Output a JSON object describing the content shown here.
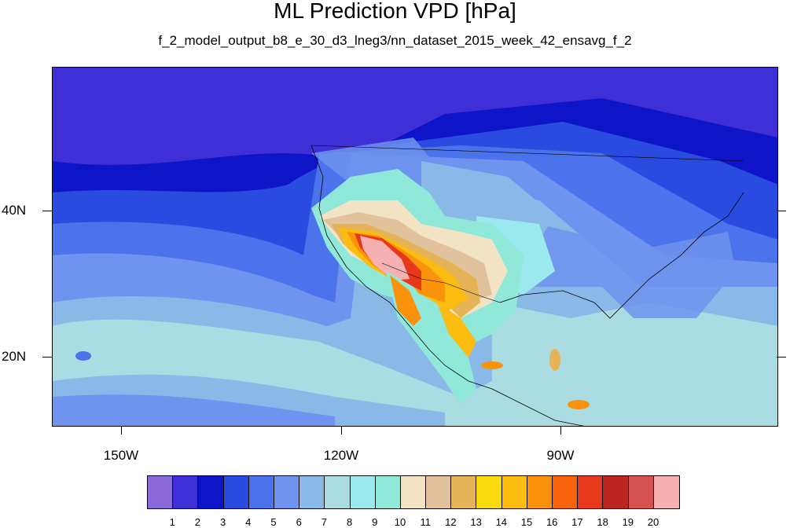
{
  "title": "ML Prediction VPD [hPa]",
  "subtitle": "f_2_model_output_b8_e_30_d3_lneg3/nn_dataset_2015_week_42_ensavg_f_2",
  "lat_labels": [
    "40N",
    "20N"
  ],
  "lon_labels": [
    "150W",
    "120W",
    "90W"
  ],
  "legend": {
    "colors": [
      "#8a6ad8",
      "#3f2fd6",
      "#0e14c8",
      "#2a4be0",
      "#4a73ec",
      "#6f93ee",
      "#8ab9e8",
      "#abdce2",
      "#9be8ee",
      "#8fe8d8",
      "#f2e3c4",
      "#e2c29c",
      "#e6b458",
      "#f8dc10",
      "#fcbc10",
      "#fb920c",
      "#f8620c",
      "#e8381c",
      "#bc2620",
      "#d65252",
      "#f7b0b2"
    ],
    "labels": [
      "1",
      "2",
      "3",
      "4",
      "5",
      "6",
      "7",
      "8",
      "9",
      "10",
      "11",
      "12",
      "13",
      "14",
      "15",
      "16",
      "17",
      "18",
      "19",
      "20"
    ]
  }
}
